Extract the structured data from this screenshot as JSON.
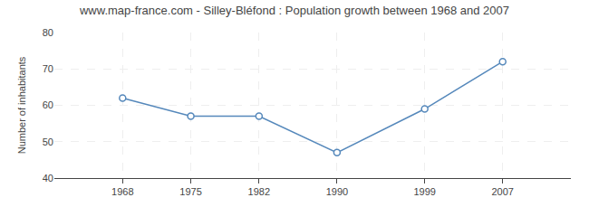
{
  "chart_data": {
    "type": "line",
    "title": "www.map-france.com - Silley-Bléfond : Population growth between 1968 and 2007",
    "ylabel": "Number of inhabitants",
    "x": [
      1968,
      1975,
      1982,
      1990,
      1999,
      2007
    ],
    "values": [
      62,
      57,
      57,
      47,
      59,
      72
    ],
    "xlim": [
      1961,
      2014
    ],
    "xticks": [
      1968,
      1975,
      1982,
      1990,
      1999,
      2007
    ],
    "ylim": [
      40,
      80
    ],
    "yticks": [
      40,
      50,
      60,
      70,
      80
    ],
    "grid": true,
    "color": "#5588bb",
    "marker": "circle"
  }
}
